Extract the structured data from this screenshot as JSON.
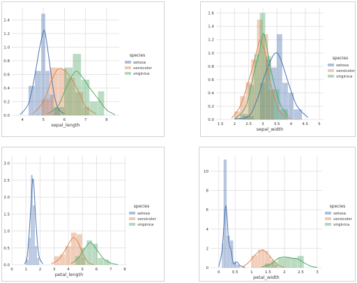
{
  "chart_data": [
    {
      "type": "histogram-kde",
      "xlabel": "sepal_length",
      "ylabel": "",
      "xticks": [
        4,
        5,
        6,
        7,
        8
      ],
      "yticks": [
        0.0,
        0.2,
        0.4,
        0.6,
        0.8,
        1.0,
        1.2,
        1.4
      ],
      "xlim": [
        3.5,
        8.6
      ],
      "ylim": [
        0,
        1.58
      ],
      "grid": true,
      "legend": {
        "title": "species",
        "placement": "right",
        "entries": [
          "setosa",
          "versicolor",
          "virginica"
        ]
      },
      "series": [
        {
          "name": "setosa",
          "bins": [
            [
              4.3,
              4.6,
              0.43
            ],
            [
              4.6,
              4.9,
              0.65
            ],
            [
              4.9,
              5.1,
              1.49
            ],
            [
              5.1,
              5.3,
              0.65
            ],
            [
              5.3,
              5.5,
              0.3
            ],
            [
              5.5,
              5.8,
              0.1
            ]
          ],
          "kde": [
            [
              3.9,
              0.01
            ],
            [
              4.3,
              0.18
            ],
            [
              4.6,
              0.6
            ],
            [
              4.8,
              0.96
            ],
            [
              5.0,
              1.23
            ],
            [
              5.1,
              1.18
            ],
            [
              5.3,
              0.75
            ],
            [
              5.5,
              0.32
            ],
            [
              5.7,
              0.1
            ],
            [
              6.0,
              0.02
            ]
          ]
        },
        {
          "name": "versicolor",
          "bins": [
            [
              4.9,
              5.3,
              0.24
            ],
            [
              5.3,
              5.7,
              0.7
            ],
            [
              5.7,
              6.1,
              0.68
            ],
            [
              6.1,
              6.5,
              0.55
            ],
            [
              6.5,
              6.9,
              0.34
            ],
            [
              6.9,
              7.2,
              0.12
            ]
          ],
          "kde": [
            [
              4.5,
              0.02
            ],
            [
              5.0,
              0.2
            ],
            [
              5.4,
              0.52
            ],
            [
              5.7,
              0.68
            ],
            [
              6.0,
              0.66
            ],
            [
              6.3,
              0.55
            ],
            [
              6.7,
              0.33
            ],
            [
              7.0,
              0.13
            ],
            [
              7.5,
              0.02
            ]
          ]
        },
        {
          "name": "virginica",
          "bins": [
            [
              5.5,
              6.0,
              0.12
            ],
            [
              6.0,
              6.4,
              0.7
            ],
            [
              6.4,
              6.8,
              0.9
            ],
            [
              6.8,
              7.2,
              0.52
            ],
            [
              7.2,
              7.6,
              0.2
            ],
            [
              7.6,
              7.9,
              0.35
            ]
          ],
          "kde": [
            [
              5.2,
              0.02
            ],
            [
              5.7,
              0.14
            ],
            [
              6.1,
              0.42
            ],
            [
              6.5,
              0.64
            ],
            [
              6.8,
              0.58
            ],
            [
              7.2,
              0.4
            ],
            [
              7.6,
              0.24
            ],
            [
              8.0,
              0.08
            ],
            [
              8.4,
              0.01
            ]
          ]
        }
      ]
    },
    {
      "type": "histogram-kde",
      "xlabel": "sepal_width",
      "ylabel": "",
      "xticks": [
        1.5,
        2.0,
        2.5,
        3.0,
        3.5,
        4.0,
        4.5,
        5.0
      ],
      "yticks": [
        0.0,
        0.2,
        0.4,
        0.6,
        0.8,
        1.0,
        1.2,
        1.4,
        1.6
      ],
      "xlim": [
        1.35,
        5.15
      ],
      "ylim": [
        0,
        1.68
      ],
      "grid": true,
      "legend": {
        "title": "species",
        "placement": "right",
        "entries": [
          "setosa",
          "versicolor",
          "virginica"
        ]
      },
      "series": [
        {
          "name": "setosa",
          "bins": [
            [
              2.3,
              2.7,
              0.05
            ],
            [
              2.9,
              3.1,
              0.55
            ],
            [
              3.1,
              3.3,
              0.9
            ],
            [
              3.3,
              3.5,
              0.78
            ],
            [
              3.5,
              3.7,
              1.28
            ],
            [
              3.7,
              3.9,
              0.55
            ],
            [
              3.9,
              4.1,
              0.4
            ],
            [
              4.1,
              4.4,
              0.15
            ]
          ],
          "kde": [
            [
              2.0,
              0.01
            ],
            [
              2.5,
              0.05
            ],
            [
              2.8,
              0.3
            ],
            [
              3.1,
              0.7
            ],
            [
              3.4,
              0.98
            ],
            [
              3.6,
              0.94
            ],
            [
              3.9,
              0.56
            ],
            [
              4.2,
              0.21
            ],
            [
              4.6,
              0.03
            ]
          ]
        },
        {
          "name": "versicolor",
          "bins": [
            [
              2.0,
              2.2,
              0.12
            ],
            [
              2.2,
              2.4,
              0.35
            ],
            [
              2.4,
              2.6,
              0.56
            ],
            [
              2.6,
              2.8,
              0.9
            ],
            [
              2.8,
              3.0,
              1.5
            ],
            [
              3.0,
              3.2,
              1.28
            ],
            [
              3.2,
              3.4,
              0.45
            ]
          ],
          "kde": [
            [
              1.9,
              0.02
            ],
            [
              2.2,
              0.2
            ],
            [
              2.5,
              0.58
            ],
            [
              2.8,
              1.05
            ],
            [
              2.9,
              1.18
            ],
            [
              3.1,
              0.98
            ],
            [
              3.3,
              0.5
            ],
            [
              3.6,
              0.12
            ],
            [
              4.0,
              0.01
            ]
          ]
        },
        {
          "name": "virginica",
          "bins": [
            [
              2.2,
              2.5,
              0.08
            ],
            [
              2.5,
              2.7,
              0.52
            ],
            [
              2.7,
              2.9,
              0.98
            ],
            [
              2.9,
              3.1,
              1.6
            ],
            [
              3.1,
              3.3,
              0.95
            ],
            [
              3.3,
              3.6,
              0.45
            ],
            [
              3.6,
              3.9,
              0.15
            ]
          ],
          "kde": [
            [
              2.0,
              0.01
            ],
            [
              2.4,
              0.2
            ],
            [
              2.7,
              0.72
            ],
            [
              2.9,
              1.05
            ],
            [
              3.0,
              1.28
            ],
            [
              3.1,
              1.2
            ],
            [
              3.3,
              0.72
            ],
            [
              3.6,
              0.25
            ],
            [
              3.9,
              0.05
            ]
          ]
        }
      ]
    },
    {
      "type": "histogram-kde",
      "xlabel": "petal_length",
      "ylabel": "",
      "xticks": [
        0,
        1,
        2,
        3,
        4,
        5,
        6,
        7,
        8
      ],
      "yticks": [
        0.0,
        0.5,
        1.0,
        1.5,
        2.0,
        2.5,
        3.0
      ],
      "xlim": [
        0,
        8.1
      ],
      "ylim": [
        0,
        3.22
      ],
      "grid": true,
      "legend": {
        "title": "species",
        "placement": "right",
        "entries": [
          "setosa",
          "versicolor",
          "virginica"
        ]
      },
      "series": [
        {
          "name": "setosa",
          "bins": [
            [
              1.0,
              1.2,
              0.15
            ],
            [
              1.2,
              1.35,
              0.8
            ],
            [
              1.35,
              1.5,
              2.65
            ],
            [
              1.5,
              1.65,
              1.75
            ],
            [
              1.65,
              1.8,
              0.55
            ],
            [
              1.8,
              1.95,
              0.2
            ]
          ],
          "kde": [
            [
              0.9,
              0.02
            ],
            [
              1.1,
              0.3
            ],
            [
              1.3,
              1.4
            ],
            [
              1.45,
              2.42
            ],
            [
              1.55,
              2.4
            ],
            [
              1.7,
              1.3
            ],
            [
              1.9,
              0.3
            ],
            [
              2.2,
              0.03
            ]
          ]
        },
        {
          "name": "versicolor",
          "bins": [
            [
              3.0,
              3.4,
              0.25
            ],
            [
              3.4,
              3.8,
              0.3
            ],
            [
              3.8,
              4.2,
              0.55
            ],
            [
              4.2,
              4.6,
              0.95
            ],
            [
              4.6,
              5.0,
              0.9
            ],
            [
              5.0,
              5.2,
              0.22
            ]
          ],
          "kde": [
            [
              2.8,
              0.03
            ],
            [
              3.3,
              0.15
            ],
            [
              3.8,
              0.45
            ],
            [
              4.2,
              0.74
            ],
            [
              4.4,
              0.8
            ],
            [
              4.7,
              0.66
            ],
            [
              5.0,
              0.35
            ],
            [
              5.4,
              0.08
            ],
            [
              5.8,
              0.01
            ]
          ]
        },
        {
          "name": "virginica",
          "bins": [
            [
              4.5,
              4.9,
              0.25
            ],
            [
              4.9,
              5.3,
              0.5
            ],
            [
              5.3,
              5.7,
              0.72
            ],
            [
              5.7,
              6.1,
              0.62
            ],
            [
              6.1,
              6.5,
              0.2
            ],
            [
              6.5,
              6.9,
              0.15
            ],
            [
              6.9,
              7.0,
              0.1
            ]
          ],
          "kde": [
            [
              4.2,
              0.03
            ],
            [
              4.7,
              0.2
            ],
            [
              5.1,
              0.45
            ],
            [
              5.5,
              0.65
            ],
            [
              5.7,
              0.62
            ],
            [
              6.1,
              0.4
            ],
            [
              6.5,
              0.18
            ],
            [
              7.0,
              0.05
            ],
            [
              7.5,
              0.01
            ]
          ]
        }
      ]
    },
    {
      "type": "histogram-kde",
      "xlabel": "petal_width",
      "ylabel": "",
      "xticks": [
        0.0,
        0.5,
        1.0,
        1.5,
        2.0,
        2.5,
        3.0
      ],
      "yticks": [
        0,
        2,
        4,
        6,
        8,
        10
      ],
      "xlim": [
        -0.25,
        3.15
      ],
      "ylim": [
        0,
        11.6
      ],
      "grid": true,
      "legend": {
        "title": "species",
        "placement": "right",
        "entries": [
          "setosa",
          "versicolor",
          "virginica"
        ]
      },
      "series": [
        {
          "name": "setosa",
          "bins": [
            [
              0.1,
              0.15,
              2.5
            ],
            [
              0.15,
              0.25,
              11.2
            ],
            [
              0.25,
              0.35,
              3.3
            ],
            [
              0.35,
              0.45,
              2.8
            ],
            [
              0.45,
              0.55,
              0.6
            ],
            [
              0.55,
              0.65,
              0.3
            ]
          ],
          "kde": [
            [
              0.0,
              0.1
            ],
            [
              0.1,
              1.8
            ],
            [
              0.2,
              6.2
            ],
            [
              0.25,
              5.4
            ],
            [
              0.3,
              2.8
            ],
            [
              0.38,
              1.7
            ],
            [
              0.45,
              0.4
            ],
            [
              0.55,
              0.6
            ],
            [
              0.65,
              0.2
            ],
            [
              0.8,
              0.02
            ]
          ]
        },
        {
          "name": "versicolor",
          "bins": [
            [
              1.0,
              1.1,
              1.2
            ],
            [
              1.1,
              1.2,
              1.3
            ],
            [
              1.2,
              1.3,
              1.85
            ],
            [
              1.3,
              1.4,
              1.9
            ],
            [
              1.4,
              1.5,
              1.7
            ],
            [
              1.5,
              1.6,
              1.2
            ],
            [
              1.6,
              1.7,
              0.8
            ],
            [
              1.7,
              1.8,
              0.3
            ]
          ],
          "kde": [
            [
              0.7,
              0.05
            ],
            [
              0.9,
              0.5
            ],
            [
              1.1,
              1.3
            ],
            [
              1.3,
              1.8
            ],
            [
              1.45,
              1.6
            ],
            [
              1.6,
              1.0
            ],
            [
              1.8,
              0.3
            ],
            [
              2.0,
              0.03
            ]
          ]
        },
        {
          "name": "virginica",
          "bins": [
            [
              1.4,
              1.6,
              0.4
            ],
            [
              1.6,
              1.8,
              0.6
            ],
            [
              1.8,
              2.0,
              1.0
            ],
            [
              2.0,
              2.2,
              1.1
            ],
            [
              2.2,
              2.4,
              1.0
            ],
            [
              2.4,
              2.6,
              1.2
            ]
          ],
          "kde": [
            [
              1.3,
              0.05
            ],
            [
              1.6,
              0.4
            ],
            [
              1.8,
              0.95
            ],
            [
              2.0,
              1.1
            ],
            [
              2.2,
              1.0
            ],
            [
              2.4,
              0.9
            ],
            [
              2.6,
              0.5
            ],
            [
              2.8,
              0.15
            ],
            [
              3.0,
              0.02
            ]
          ]
        }
      ]
    }
  ],
  "colors": {
    "setosa": "#4c72b0",
    "versicolor": "#dd8452",
    "virginica": "#55a868"
  }
}
